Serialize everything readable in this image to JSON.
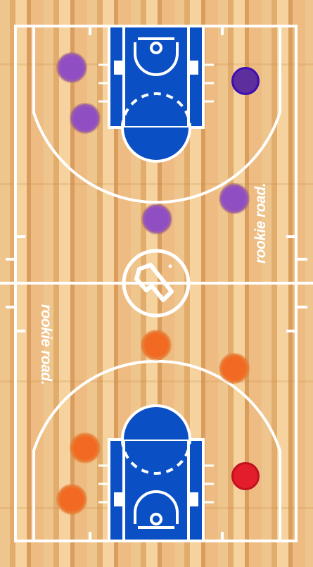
{
  "court": {
    "brand_top": "rookie road.",
    "brand_bottom": "rookie road.",
    "line_color": "#ffffff",
    "paint_color": "#0a4fc4"
  },
  "tokens": [
    {
      "id": "purple-1",
      "team": "purple"
    },
    {
      "id": "purple-2",
      "team": "purple"
    },
    {
      "id": "purple-3",
      "team": "purple-dark"
    },
    {
      "id": "purple-4",
      "team": "purple"
    },
    {
      "id": "purple-5",
      "team": "purple"
    },
    {
      "id": "orange-1",
      "team": "orange"
    },
    {
      "id": "orange-2",
      "team": "orange"
    },
    {
      "id": "orange-3",
      "team": "orange"
    },
    {
      "id": "orange-4",
      "team": "orange"
    },
    {
      "id": "red-1",
      "team": "red"
    }
  ],
  "colors": {
    "purple": "#8f4fc3",
    "purple_dark": "#5d2e9e",
    "orange": "#f26a22",
    "red": "#e41d2d"
  }
}
